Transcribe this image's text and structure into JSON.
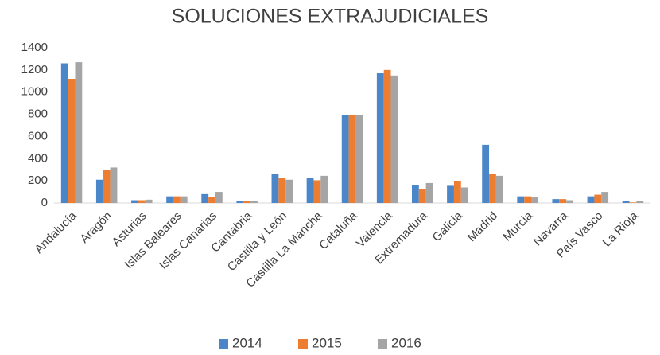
{
  "chart_data": {
    "type": "bar",
    "title": "SOLUCIONES EXTRAJUDICIALES",
    "categories": [
      "Andalucía",
      "Aragón",
      "Asturias",
      "Islas Baleares",
      "Islas Canarias",
      "Cantabria",
      "Castilla y León",
      "Castilla La Mancha",
      "Cataluña",
      "Valencia",
      "Extremadura",
      "Galicia",
      "Madrid",
      "Murcia",
      "Navarra",
      "País Vasco",
      "La Rioja"
    ],
    "series": [
      {
        "name": "2014",
        "color": "#4a86c8",
        "values": [
          1260,
          210,
          25,
          60,
          80,
          15,
          260,
          225,
          790,
          1170,
          160,
          155,
          525,
          60,
          35,
          60,
          15
        ]
      },
      {
        "name": "2015",
        "color": "#ed7d31",
        "values": [
          1120,
          300,
          25,
          60,
          55,
          15,
          225,
          205,
          790,
          1200,
          125,
          195,
          265,
          60,
          35,
          75,
          5
        ]
      },
      {
        "name": "2016",
        "color": "#a5a5a5",
        "values": [
          1270,
          320,
          30,
          60,
          100,
          20,
          210,
          245,
          790,
          1150,
          180,
          140,
          245,
          50,
          25,
          100,
          15
        ]
      }
    ],
    "ylim": [
      0,
      1400
    ],
    "yticks": [
      0,
      200,
      400,
      600,
      800,
      1000,
      1200,
      1400
    ],
    "grid": false,
    "legend": "bottom"
  }
}
